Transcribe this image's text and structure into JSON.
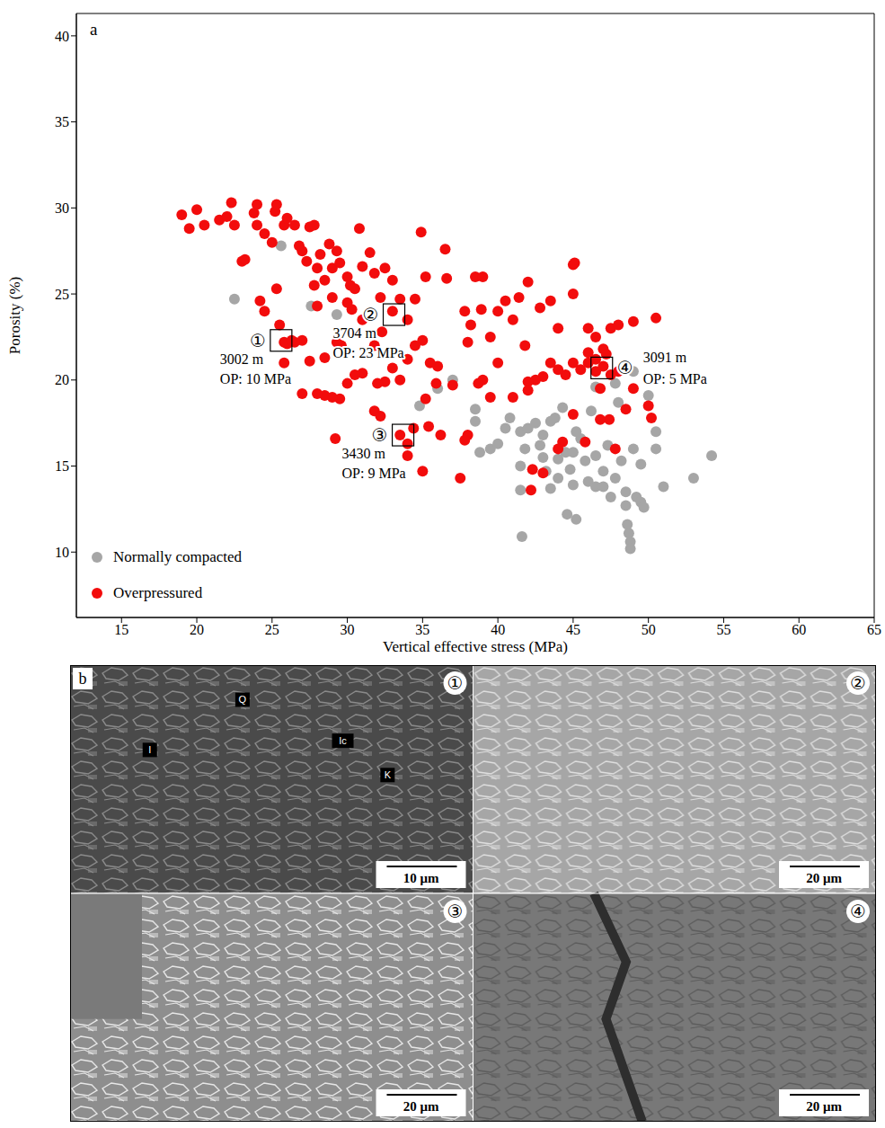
{
  "chart_data": {
    "type": "scatter",
    "panel": "a",
    "x_label": "Vertical effective stress (MPa)",
    "y_label": "Porosity (%)",
    "xlim": [
      12,
      65
    ],
    "xticks": [
      15,
      20,
      25,
      30,
      35,
      40,
      45,
      50,
      55,
      60,
      65
    ],
    "ylim": [
      6.2,
      41.3
    ],
    "yticks": [
      10,
      15,
      20,
      25,
      30,
      35,
      40
    ],
    "grid": false,
    "legend": "lower left",
    "series": [
      {
        "name": "Normally compacted",
        "color": "#a6a6a6",
        "marker": "circle",
        "x": [
          22.5,
          27.6,
          29.3,
          25.6,
          34.8,
          36,
          37,
          38.5,
          39.5,
          38.8,
          40,
          40.8,
          41.5,
          41.8,
          41.5,
          41.5,
          41.6,
          42.5,
          43,
          43,
          43.5,
          43.2,
          43.5,
          44,
          44,
          44.5,
          44.6,
          44.8,
          45,
          45,
          45.2,
          45.5,
          45.8,
          46,
          46.2,
          46.5,
          46.5,
          47,
          47,
          47.5,
          47.3,
          47.8,
          48,
          48.2,
          48.5,
          48.5,
          48.6,
          48.7,
          48.8,
          48.8,
          49,
          49.2,
          49.5,
          49.7,
          49.5,
          50,
          50.5,
          50.5,
          51,
          53,
          54.2,
          47.8,
          46.5,
          45.2,
          44.3,
          43.8,
          42.8,
          42,
          40.5,
          38.5,
          49
        ],
        "values": [
          24.7,
          24.3,
          23.8,
          27.8,
          18.5,
          19.5,
          20,
          18.3,
          16,
          15.8,
          16.3,
          17.8,
          17,
          16,
          15,
          13.6,
          10.9,
          17.5,
          16.8,
          15.5,
          17.6,
          14.7,
          13.7,
          15.4,
          14.3,
          15.8,
          12.2,
          14.8,
          15.8,
          13.9,
          11.9,
          16.6,
          15.3,
          14.1,
          18.2,
          13.8,
          15.6,
          14.7,
          13.8,
          13.2,
          16.2,
          14.3,
          18.7,
          15.3,
          13.5,
          12.7,
          11.6,
          11.1,
          10.6,
          10.2,
          16,
          13.2,
          12.9,
          12.6,
          15.1,
          19.1,
          17,
          16,
          13.8,
          14.3,
          15.6,
          19.8,
          19.6,
          17,
          18.4,
          17.8,
          16.2,
          17.2,
          17.2,
          17.6,
          20.5
        ]
      },
      {
        "name": "Overpressured",
        "color": "#f20c0c",
        "marker": "circle",
        "x": [
          19,
          19.5,
          20,
          20.5,
          21.5,
          22,
          22.3,
          22.5,
          23,
          23.2,
          23.8,
          24,
          24,
          24.5,
          24.2,
          24.5,
          25,
          25.2,
          25.3,
          25.3,
          25.5,
          25.8,
          26,
          26.5,
          26.8,
          27,
          27.3,
          27.5,
          27.8,
          28,
          28.2,
          28.5,
          28.8,
          29,
          29.3,
          29.5,
          30,
          30.2,
          30.5,
          30.8,
          31,
          31.5,
          31.8,
          32.2,
          32.5,
          33,
          33.5,
          34.5,
          34.9,
          35.2,
          36.5,
          36.6,
          37.8,
          38.5,
          39,
          38.2,
          38,
          38.9,
          39.5,
          40,
          40.5,
          41,
          41.4,
          41.8,
          42,
          42.8,
          43.5,
          44,
          45,
          45.1,
          45,
          46,
          46.5,
          47,
          47.5,
          48,
          49,
          50.5,
          46,
          46.5,
          47,
          47.5,
          45.5,
          45,
          44.5,
          44,
          43.5,
          43,
          42.5,
          42,
          46.8,
          48,
          49,
          50,
          50.2,
          48.5,
          47.4,
          46.8,
          45,
          44.3,
          44,
          42,
          41,
          42.3,
          42.2,
          43,
          45.8,
          47.8,
          40,
          39,
          38.7,
          39.5,
          38,
          37.8,
          37.5,
          37,
          36,
          35.5,
          35,
          34.5,
          34,
          33.5,
          33,
          32.5,
          32,
          31.8,
          31,
          30.5,
          30,
          29.5,
          29,
          28.5,
          28,
          27.5,
          27,
          26.5,
          26,
          25.8,
          27,
          29.6,
          29.2,
          31.8,
          32.2,
          33.5,
          34,
          34.4,
          34,
          35,
          35.4,
          35.2,
          36.2,
          35.9,
          29.3,
          28.5,
          31,
          32.3,
          30.3,
          30,
          27.8,
          28,
          29,
          33,
          34,
          25.8,
          26.3,
          46.5,
          47.2,
          46
        ],
        "values": [
          29.6,
          28.8,
          29.9,
          29,
          29.3,
          29.5,
          30.3,
          29,
          26.9,
          27,
          29.7,
          30.2,
          29,
          28.5,
          24.6,
          24,
          28,
          29.8,
          30.2,
          25.3,
          23.2,
          29,
          29.4,
          29,
          27.8,
          27.5,
          26.9,
          28.9,
          29,
          26.5,
          27.3,
          25.8,
          27.9,
          26.5,
          27.5,
          26.8,
          26,
          25.5,
          25.3,
          28.8,
          26.6,
          27.4,
          26.2,
          24.8,
          26.5,
          25.8,
          24.7,
          24.7,
          28.6,
          26,
          27.6,
          25.9,
          24,
          26,
          26,
          23.2,
          22.2,
          24.1,
          22.5,
          24,
          24.6,
          23.5,
          24.8,
          22,
          25.7,
          24.2,
          24.6,
          23,
          26.7,
          26.8,
          25,
          23,
          22.5,
          21.8,
          23,
          23.2,
          23.4,
          23.6,
          21,
          20.5,
          20.8,
          20.3,
          20.6,
          21,
          20.3,
          20.6,
          21,
          20.2,
          20,
          19.9,
          19.5,
          20.5,
          19.5,
          18.5,
          17.8,
          18.3,
          17.7,
          17.7,
          18,
          16.4,
          16,
          19.4,
          19,
          14.8,
          13.6,
          14.6,
          16.4,
          16,
          21,
          20,
          19.8,
          19,
          16.8,
          16.5,
          14.3,
          19.7,
          20.8,
          21,
          22.3,
          22,
          21.2,
          20,
          20.7,
          19.9,
          19.8,
          22,
          20.4,
          20.3,
          19.8,
          18.9,
          19,
          19.1,
          19.2,
          21.1,
          22.3,
          22.2,
          22.1,
          21,
          19.2,
          22,
          16.6,
          18.2,
          17.9,
          16.8,
          16.3,
          17.2,
          15.6,
          14.7,
          17.3,
          18.9,
          16.8,
          19.8,
          22.2,
          21.3,
          23.5,
          22.8,
          24.1,
          24.5,
          25.5,
          24.3,
          24.8,
          24,
          23.5,
          22.2,
          22.3,
          21.2,
          21.5,
          21.6
        ]
      }
    ],
    "annotations": [
      {
        "marker": "①",
        "x": 25.6,
        "y": 22.3,
        "text": [
          "3002 m",
          "OP: 10 MPa"
        ]
      },
      {
        "marker": "②",
        "x": 33.1,
        "y": 23.8,
        "text": [
          "3704 m",
          "OP: 23 MPa"
        ]
      },
      {
        "marker": "③",
        "x": 33.7,
        "y": 16.8,
        "text": [
          "3430 m",
          "OP: 9 MPa"
        ]
      },
      {
        "marker": "④",
        "x": 46.9,
        "y": 20.7,
        "text": [
          "3091 m",
          "OP: 5 MPa"
        ]
      }
    ]
  },
  "panel_b": {
    "label": "b",
    "images": [
      {
        "number": "①",
        "scale_bar": "10 μm",
        "labels": [
          "Q",
          "I",
          "Ic",
          "K"
        ]
      },
      {
        "number": "②",
        "scale_bar": "20 μm"
      },
      {
        "number": "③",
        "scale_bar": "20 μm"
      },
      {
        "number": "④",
        "scale_bar": "20 μm"
      }
    ]
  }
}
